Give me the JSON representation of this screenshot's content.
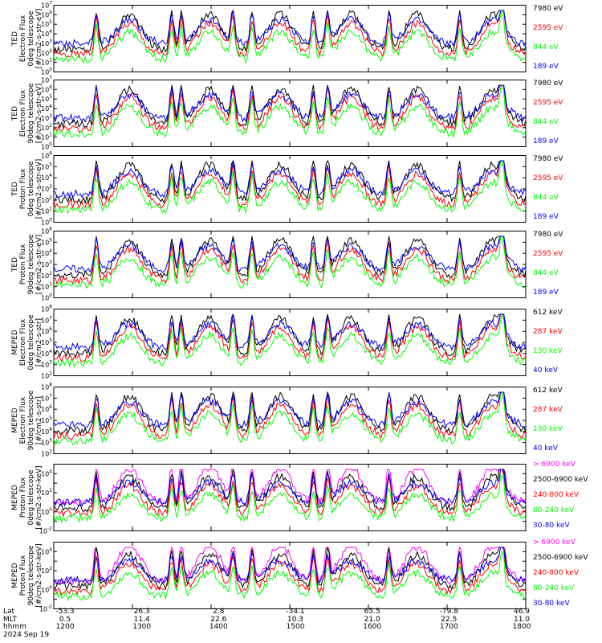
{
  "colors": {
    "black": "#000000",
    "red": "#ff0000",
    "green": "#00ff00",
    "blue": "#0000ff",
    "magenta": "#ff00ff"
  },
  "footer": {
    "row_labels": [
      "Lat",
      "MLT",
      "hhmm",
      "2024 Sep 19"
    ],
    "lat": [
      "-53.3",
      "26.3",
      "2.8",
      "-34.1",
      "65.5",
      "-79.8",
      "46.9"
    ],
    "mlt": [
      "0.5",
      "11.4",
      "22.6",
      "10.3",
      "21.0",
      "22.5",
      "11.0"
    ],
    "hhmm": [
      "1200",
      "1300",
      "1400",
      "1500",
      "1600",
      "1700",
      "1800"
    ]
  },
  "chart_data": [
    {
      "type": "line",
      "ylabel": [
        "TED",
        "Electron Flux",
        "0deg telescope",
        "[#/cm2-s-str-eV]"
      ],
      "yscale": "log",
      "ylim_exp": [
        0,
        7
      ],
      "y_tick_labels": [
        "10^0",
        "10^1",
        "10^2",
        "10^3",
        "10^4",
        "10^5",
        "10^6",
        "10^7"
      ],
      "x_range": [
        "1200",
        "1800"
      ],
      "series": [
        {
          "name": "7980 eV",
          "color": "#000000"
        },
        {
          "name": "2595 eV",
          "color": "#ff0000"
        },
        {
          "name": "844 eV",
          "color": "#00ff00"
        },
        {
          "name": "189 eV",
          "color": "#0000ff"
        }
      ]
    },
    {
      "type": "line",
      "ylabel": [
        "TED",
        "Electron Flux",
        "90deg telescope",
        "[#/cm2-s-str-eV]"
      ],
      "yscale": "log",
      "ylim_exp": [
        0,
        7
      ],
      "y_tick_labels": [
        "10^0",
        "10^1",
        "10^2",
        "10^3",
        "10^4",
        "10^5",
        "10^6",
        "10^7"
      ],
      "x_range": [
        "1200",
        "1800"
      ],
      "series": [
        {
          "name": "7980 eV",
          "color": "#000000"
        },
        {
          "name": "2595 eV",
          "color": "#ff0000"
        },
        {
          "name": "844 eV",
          "color": "#00ff00"
        },
        {
          "name": "189 eV",
          "color": "#0000ff"
        }
      ]
    },
    {
      "type": "line",
      "ylabel": [
        "TED",
        "Proton Flux",
        "0deg telescope",
        "[#/cm2-s-str-eV]"
      ],
      "yscale": "log",
      "ylim_exp": [
        0,
        6
      ],
      "y_tick_labels": [
        "10^0",
        "10^1",
        "10^2",
        "10^3",
        "10^4",
        "10^5",
        "10^6"
      ],
      "x_range": [
        "1200",
        "1800"
      ],
      "series": [
        {
          "name": "7980 eV",
          "color": "#000000"
        },
        {
          "name": "2595 eV",
          "color": "#ff0000"
        },
        {
          "name": "844 eV",
          "color": "#00ff00"
        },
        {
          "name": "189 eV",
          "color": "#0000ff"
        }
      ]
    },
    {
      "type": "line",
      "ylabel": [
        "TED",
        "Proton Flux",
        "90deg telescope",
        "[#/cm2-s-str-eV]"
      ],
      "yscale": "log",
      "ylim_exp": [
        0,
        6
      ],
      "y_tick_labels": [
        "10^0",
        "10^1",
        "10^2",
        "10^3",
        "10^4",
        "10^5",
        "10^6"
      ],
      "x_range": [
        "1200",
        "1800"
      ],
      "series": [
        {
          "name": "7980 eV",
          "color": "#000000"
        },
        {
          "name": "2595 eV",
          "color": "#ff0000"
        },
        {
          "name": "844 eV",
          "color": "#00ff00"
        },
        {
          "name": "189 eV",
          "color": "#0000ff"
        }
      ]
    },
    {
      "type": "line",
      "ylabel": [
        "MEPED",
        "Electron Flux",
        "0deg telescope",
        "[#/cm2-s-str]"
      ],
      "yscale": "log",
      "ylim_exp": [
        2,
        8
      ],
      "y_tick_labels": [
        "10^2",
        "10^3",
        "10^4",
        "10^5",
        "10^6",
        "10^7",
        "10^8"
      ],
      "x_range": [
        "1200",
        "1800"
      ],
      "series": [
        {
          "name": "612 keV",
          "color": "#000000"
        },
        {
          "name": "287 keV",
          "color": "#ff0000"
        },
        {
          "name": "130 keV",
          "color": "#00ff00"
        },
        {
          "name": "40 keV",
          "color": "#0000ff"
        }
      ]
    },
    {
      "type": "line",
      "ylabel": [
        "MEPED",
        "Electron Flux",
        "90deg telescope",
        "[#/cm2-s-str]"
      ],
      "yscale": "log",
      "ylim_exp": [
        2,
        8
      ],
      "y_tick_labels": [
        "10^2",
        "10^3",
        "10^4",
        "10^5",
        "10^6",
        "10^7",
        "10^8"
      ],
      "x_range": [
        "1200",
        "1800"
      ],
      "series": [
        {
          "name": "612 keV",
          "color": "#000000"
        },
        {
          "name": "287 keV",
          "color": "#ff0000"
        },
        {
          "name": "130 keV",
          "color": "#00ff00"
        },
        {
          "name": "40 keV",
          "color": "#0000ff"
        }
      ]
    },
    {
      "type": "line",
      "ylabel": [
        "MEPED",
        "Proton Flux",
        "0deg telescope",
        "[#/cm2-s-str-keV]"
      ],
      "yscale": "log",
      "ylim_exp": [
        -2,
        5
      ],
      "y_tick_labels": [
        "10^-2",
        "10^0",
        "10^2",
        "10^4"
      ],
      "x_range": [
        "1200",
        "1800"
      ],
      "series": [
        {
          "name": "> 6900 keV",
          "color": "#ff00ff"
        },
        {
          "name": "2500-6900 keV",
          "color": "#000000"
        },
        {
          "name": "240-800 keV",
          "color": "#ff0000"
        },
        {
          "name": "80-240 keV",
          "color": "#00ff00"
        },
        {
          "name": "30-80 keV",
          "color": "#0000ff"
        }
      ]
    },
    {
      "type": "line",
      "ylabel": [
        "MEPED",
        "Proton Flux",
        "90deg telescope",
        "[#/cm2-s-str-keV]"
      ],
      "yscale": "log",
      "ylim_exp": [
        -2,
        5
      ],
      "y_tick_labels": [
        "10^-2",
        "10^0",
        "10^2",
        "10^4"
      ],
      "x_range": [
        "1200",
        "1800"
      ],
      "series": [
        {
          "name": "> 6900 keV",
          "color": "#ff00ff"
        },
        {
          "name": "2500-6900 keV",
          "color": "#000000"
        },
        {
          "name": "240-800 keV",
          "color": "#ff0000"
        },
        {
          "name": "80-240 keV",
          "color": "#00ff00"
        },
        {
          "name": "30-80 keV",
          "color": "#0000ff"
        }
      ]
    }
  ]
}
